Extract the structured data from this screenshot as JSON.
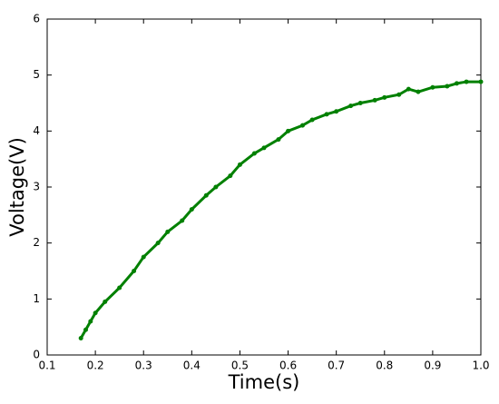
{
  "chart_data": {
    "type": "line",
    "x_label": "Time(s)",
    "y_label": "Voltage(V)",
    "series": [
      {
        "color": "#008000",
        "x": [
          0.17,
          0.18,
          0.19,
          0.2,
          0.22,
          0.25,
          0.28,
          0.3,
          0.33,
          0.35,
          0.38,
          0.4,
          0.43,
          0.45,
          0.48,
          0.5,
          0.53,
          0.55,
          0.58,
          0.6,
          0.63,
          0.65,
          0.68,
          0.7,
          0.73,
          0.75,
          0.78,
          0.8,
          0.83,
          0.85,
          0.87,
          0.9,
          0.93,
          0.95,
          0.97,
          1.0
        ],
        "values": [
          0.3,
          0.45,
          0.6,
          0.75,
          0.95,
          1.2,
          1.5,
          1.75,
          2.0,
          2.2,
          2.4,
          2.6,
          2.85,
          3.0,
          3.2,
          3.4,
          3.6,
          3.7,
          3.85,
          4.0,
          4.1,
          4.2,
          4.3,
          4.35,
          4.45,
          4.5,
          4.55,
          4.6,
          4.65,
          4.75,
          4.7,
          4.78,
          4.8,
          4.85,
          4.88,
          4.88
        ]
      }
    ],
    "xlim": [
      0.1,
      1.0
    ],
    "xticks": [
      0.1,
      0.2,
      0.3,
      0.4,
      0.5,
      0.6,
      0.7,
      0.8,
      0.9,
      {
        "value": 1.0,
        "label": "1.0"
      }
    ],
    "ylim": [
      0,
      6
    ],
    "yticks": [
      0,
      1,
      2,
      3,
      4,
      5,
      6
    ],
    "grid": false
  }
}
